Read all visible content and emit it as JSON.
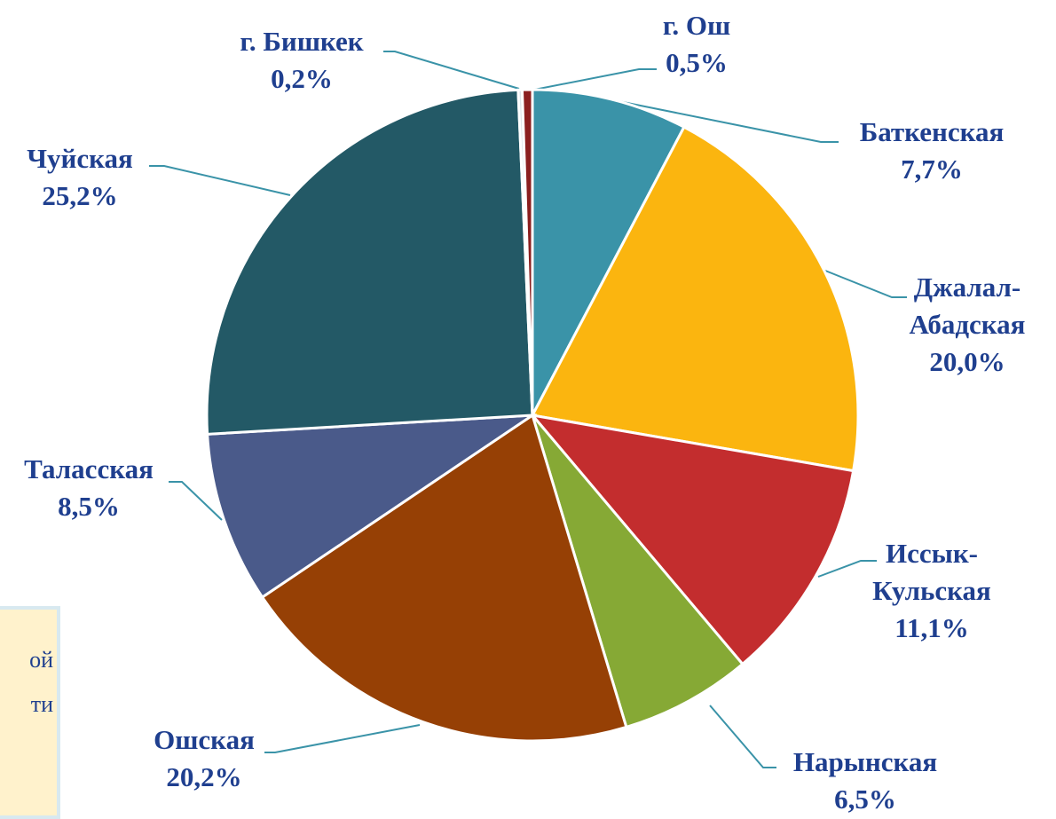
{
  "chart_data": {
    "type": "pie",
    "categories": [
      "Баткенская",
      "Джалал-Абадская",
      "Иссык-Кульская",
      "Нарынская",
      "Ошская",
      "Таласская",
      "Чуйская",
      "г. Бишкек",
      "г. Ош"
    ],
    "values": [
      7.7,
      20.0,
      11.1,
      6.5,
      20.2,
      8.5,
      25.2,
      0.2,
      0.5
    ],
    "value_labels": [
      "7,7%",
      "20,0%",
      "11,1%",
      "6,5%",
      "20,2%",
      "8,5%",
      "25,2%",
      "0,2%",
      "0,5%"
    ],
    "colors": [
      "#3a93a8",
      "#fbb50f",
      "#c32d2e",
      "#86a935",
      "#964005",
      "#4a5a8a",
      "#235966",
      "#dfe6ea",
      "#8b1f1f"
    ]
  },
  "note": {
    "lines": [
      "ой",
      "ти"
    ]
  }
}
